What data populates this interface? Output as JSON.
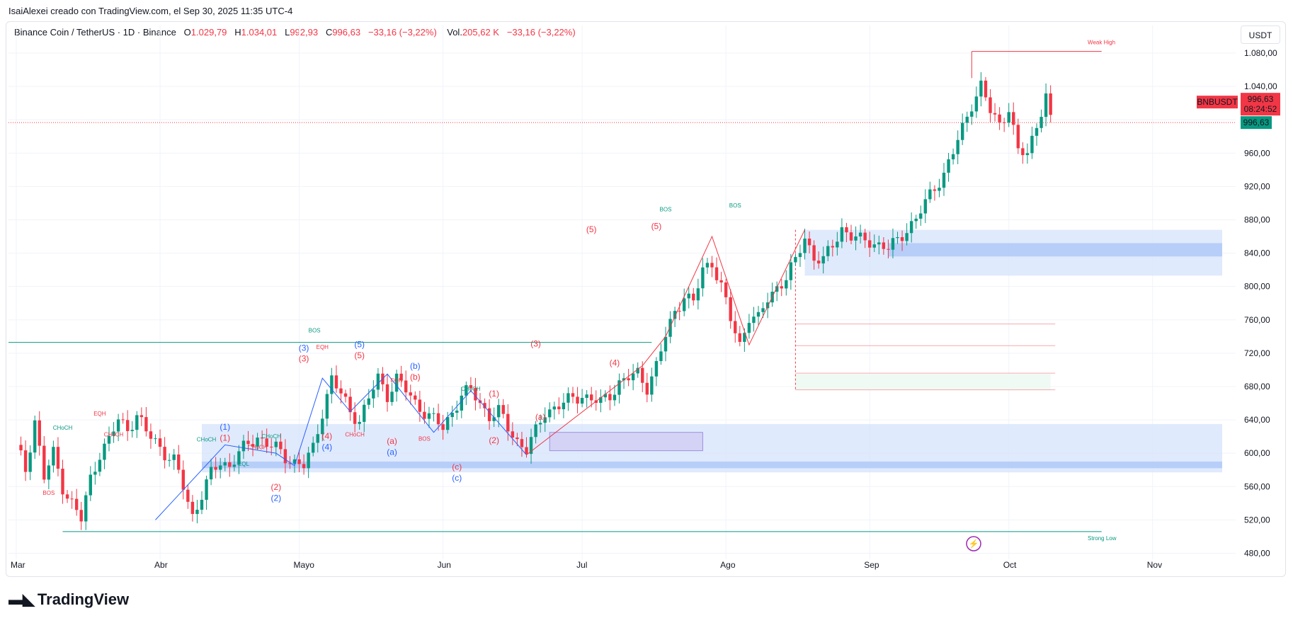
{
  "caption": "IsaiAlexei creado con TradingView.com, el Sep 30, 2025 11:35 UTC-4",
  "legend": {
    "symbol": "Binance Coin / TetherUS · 1D · Binance",
    "o_label": "O",
    "o_value": "1.029,79",
    "h_label": "H",
    "h_value": "1.034,01",
    "l_label": "L",
    "l_value": "992,93",
    "c_label": "C",
    "c_value": "996,63",
    "change": "−33,16 (−3,22%)",
    "vol_label": "Vol.",
    "vol_value": "205,62 K",
    "vol_change": "−33,16 (−3,22%)"
  },
  "currency_button": "USDT",
  "brand": "TradingView",
  "colors": {
    "up": "#089981",
    "down": "#f23645",
    "zone": "#c7d8fb",
    "zone_dark": "#a9c4f7",
    "wave_blue": "#2962ff",
    "wave_red": "#f23645",
    "green_line": "#089981"
  },
  "chart_data": {
    "type": "candlestick",
    "symbol": "BNBUSDT",
    "y_ticks": [
      480,
      520,
      560,
      600,
      640,
      680,
      720,
      760,
      800,
      840,
      880,
      920,
      960,
      1000,
      1040,
      1080
    ],
    "y_tick_labels": [
      "480,00",
      "520,00",
      "560,00",
      "600,00",
      "640,00",
      "680,00",
      "720,00",
      "760,00",
      "800,00",
      "840,00",
      "880,00",
      "920,00",
      "960,00",
      "",
      "1.040,00",
      "1.080,00"
    ],
    "ylim": [
      455,
      1115
    ],
    "x_labels": [
      "Mar",
      "Abr",
      "Mayo",
      "Jun",
      "Jul",
      "Ago",
      "Sep",
      "Oct",
      "Nov"
    ],
    "x_label_days": [
      0,
      31,
      61,
      92,
      122,
      153,
      184,
      214,
      245
    ],
    "last_price": 996.63,
    "last_price_label": "996,63",
    "countdown": "08:24:52",
    "pivots": [
      [
        0,
        610
      ],
      [
        2,
        580
      ],
      [
        4,
        640
      ],
      [
        6,
        570
      ],
      [
        8,
        600
      ],
      [
        10,
        560
      ],
      [
        12,
        540
      ],
      [
        14,
        520
      ],
      [
        16,
        570
      ],
      [
        18,
        600
      ],
      [
        20,
        615
      ],
      [
        22,
        640
      ],
      [
        24,
        630
      ],
      [
        26,
        645
      ],
      [
        28,
        625
      ],
      [
        30,
        615
      ],
      [
        32,
        600
      ],
      [
        34,
        590
      ],
      [
        36,
        560
      ],
      [
        38,
        525
      ],
      [
        40,
        550
      ],
      [
        42,
        575
      ],
      [
        44,
        590
      ],
      [
        46,
        585
      ],
      [
        48,
        600
      ],
      [
        50,
        610
      ],
      [
        52,
        620
      ],
      [
        54,
        612
      ],
      [
        56,
        605
      ],
      [
        58,
        595
      ],
      [
        60,
        590
      ],
      [
        62,
        585
      ],
      [
        64,
        605
      ],
      [
        66,
        650
      ],
      [
        68,
        690
      ],
      [
        70,
        670
      ],
      [
        72,
        650
      ],
      [
        74,
        640
      ],
      [
        76,
        665
      ],
      [
        78,
        690
      ],
      [
        80,
        670
      ],
      [
        82,
        690
      ],
      [
        84,
        675
      ],
      [
        86,
        660
      ],
      [
        88,
        650
      ],
      [
        90,
        640
      ],
      [
        92,
        630
      ],
      [
        94,
        650
      ],
      [
        96,
        670
      ],
      [
        98,
        675
      ],
      [
        100,
        660
      ],
      [
        102,
        645
      ],
      [
        104,
        650
      ],
      [
        106,
        630
      ],
      [
        108,
        615
      ],
      [
        110,
        605
      ],
      [
        112,
        625
      ],
      [
        114,
        650
      ],
      [
        116,
        655
      ],
      [
        118,
        660
      ],
      [
        120,
        665
      ],
      [
        122,
        670
      ],
      [
        124,
        665
      ],
      [
        126,
        660
      ],
      [
        128,
        670
      ],
      [
        130,
        685
      ],
      [
        132,
        690
      ],
      [
        134,
        695
      ],
      [
        136,
        680
      ],
      [
        138,
        705
      ],
      [
        140,
        740
      ],
      [
        142,
        770
      ],
      [
        144,
        790
      ],
      [
        146,
        780
      ],
      [
        148,
        820
      ],
      [
        150,
        830
      ],
      [
        152,
        800
      ],
      [
        154,
        760
      ],
      [
        156,
        730
      ],
      [
        158,
        765
      ],
      [
        160,
        760
      ],
      [
        162,
        785
      ],
      [
        164,
        800
      ],
      [
        166,
        810
      ],
      [
        168,
        830
      ],
      [
        170,
        860
      ],
      [
        172,
        835
      ],
      [
        174,
        830
      ],
      [
        176,
        850
      ],
      [
        178,
        870
      ],
      [
        180,
        860
      ],
      [
        182,
        855
      ],
      [
        184,
        855
      ],
      [
        186,
        850
      ],
      [
        188,
        845
      ],
      [
        190,
        855
      ],
      [
        192,
        870
      ],
      [
        194,
        880
      ],
      [
        196,
        900
      ],
      [
        198,
        920
      ],
      [
        200,
        935
      ],
      [
        202,
        960
      ],
      [
        204,
        990
      ],
      [
        206,
        1020
      ],
      [
        208,
        1040
      ],
      [
        210,
        1010
      ],
      [
        212,
        995
      ],
      [
        214,
        1015
      ],
      [
        216,
        960
      ],
      [
        218,
        960
      ],
      [
        220,
        995
      ],
      [
        222,
        1028
      ],
      [
        223,
        997
      ]
    ],
    "annotations": {
      "bos_main": "BOS",
      "weak_high": "Weak High",
      "strong_low": "Strong Low",
      "choch": "CHoCH",
      "eqh": "EQH",
      "eql": "EQL",
      "bos": "BOS",
      "waves": {
        "w1": "(1)",
        "w2": "(2)",
        "w3": "(3)",
        "w4": "(4)",
        "w5": "(5)",
        "wa": "(a)",
        "wb": "(b)",
        "wc": "(c)"
      }
    }
  }
}
